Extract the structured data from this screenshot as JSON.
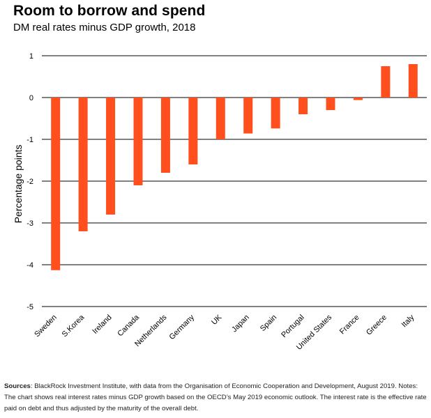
{
  "header": {
    "title": "Room to borrow and spend",
    "subtitle": "DM real rates minus GDP growth, 2018"
  },
  "footer": {
    "source_label": "Sources",
    "source_text": ": BlackRock Investment Institute, with data from the Organisation of Economic Cooperation and Development, August 2019. Notes: The chart shows real interest rates minus GDP growth based on the OECD’s May 2019 economic outlook. The interest rate is the effective rate paid on debt and thus adjusted by the maturity of the overall debt."
  },
  "colors": {
    "bar": "#ff4f1f",
    "grid": "#000000",
    "text": "#000000"
  },
  "chart_data": {
    "type": "bar",
    "title": "Room to borrow and spend",
    "subtitle": "DM real rates minus GDP growth, 2018",
    "xlabel": "",
    "ylabel": "Percentage points",
    "ylim": [
      -5,
      1
    ],
    "yticks": [
      1,
      0,
      -1,
      -2,
      -3,
      -4,
      -5
    ],
    "grid": true,
    "categories": [
      "Sweden",
      "S.Korea",
      "Ireland",
      "Canada",
      "Netherlands",
      "Germany",
      "UK",
      "Japan",
      "Spain",
      "Portugal",
      "United States",
      "France",
      "Greece",
      "Italy"
    ],
    "values": [
      -4.13,
      -3.2,
      -2.8,
      -2.1,
      -1.8,
      -1.6,
      -1.0,
      -0.86,
      -0.74,
      -0.4,
      -0.3,
      -0.06,
      0.75,
      0.8
    ]
  }
}
